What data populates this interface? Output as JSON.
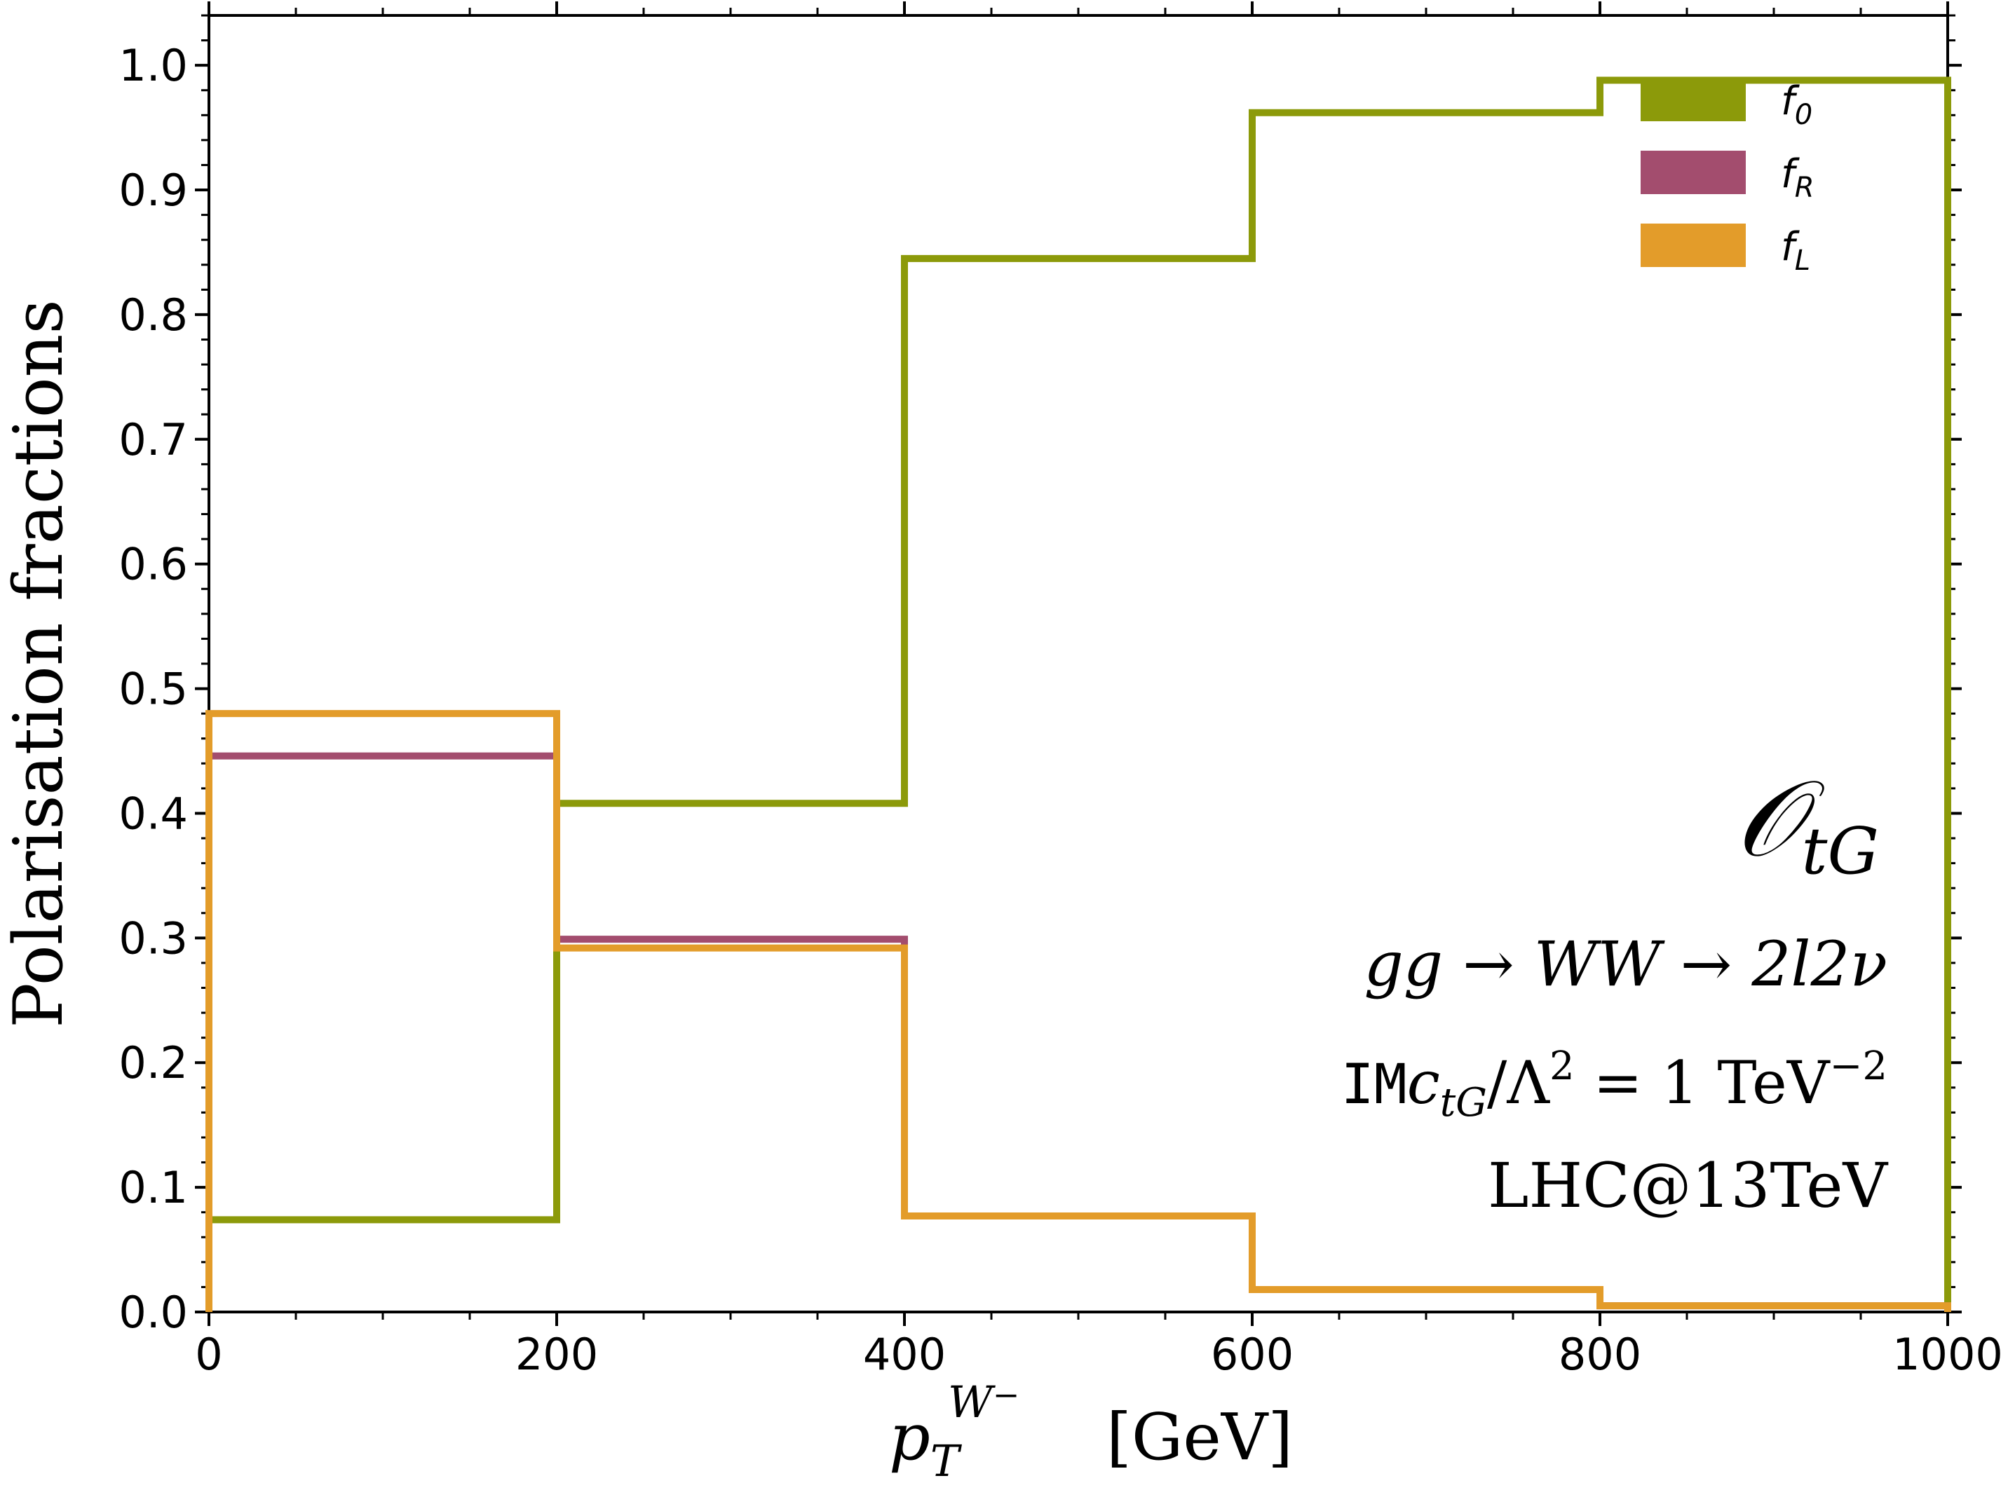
{
  "chart_data": {
    "type": "line",
    "step": true,
    "xlabel_main": "p",
    "xlabel_sub": "T",
    "xlabel_sup": "W",
    "xlabel_sup_sign": "−",
    "xlabel_unit": "[GeV]",
    "ylabel": "Polarisation fractions",
    "xlim": [
      0,
      1000
    ],
    "ylim": [
      0,
      1.04
    ],
    "x_ticks": [
      0,
      200,
      400,
      600,
      800,
      1000
    ],
    "x_tick_labels": [
      "0",
      "200",
      "400",
      "600",
      "800",
      "1000"
    ],
    "y_ticks": [
      0.0,
      0.1,
      0.2,
      0.3,
      0.4,
      0.5,
      0.6,
      0.7,
      0.8,
      0.9,
      1.0
    ],
    "y_tick_labels": [
      "0.0",
      "0.1",
      "0.2",
      "0.3",
      "0.4",
      "0.5",
      "0.6",
      "0.7",
      "0.8",
      "0.9",
      "1.0"
    ],
    "bin_edges": [
      0,
      200,
      400,
      600,
      800,
      1000
    ],
    "series": [
      {
        "name": "f",
        "subscript": "0",
        "color": "#8c9a0a",
        "values": [
          0.074,
          0.408,
          0.845,
          0.962,
          0.988
        ]
      },
      {
        "name": "f",
        "subscript": "R",
        "color": "#a34d6e",
        "values": [
          0.446,
          0.299,
          0.077,
          0.018,
          0.005
        ]
      },
      {
        "name": "f",
        "subscript": "L",
        "color": "#e39c2a",
        "values": [
          0.48,
          0.292,
          0.077,
          0.018,
          0.005
        ]
      }
    ],
    "legend_position": "top-right",
    "annotations": {
      "operator_main": "𝒪",
      "operator_sub": "tG",
      "process": "gg → WW → 2l2ν",
      "coupling_prefix": "IM",
      "coupling_c": "c",
      "coupling_c_sub": "tG",
      "coupling_rest": "/Λ",
      "coupling_exp": "2",
      "coupling_eq": " = 1 TeV",
      "coupling_eq_exp": "−2",
      "collider": "LHC@13TeV"
    }
  }
}
